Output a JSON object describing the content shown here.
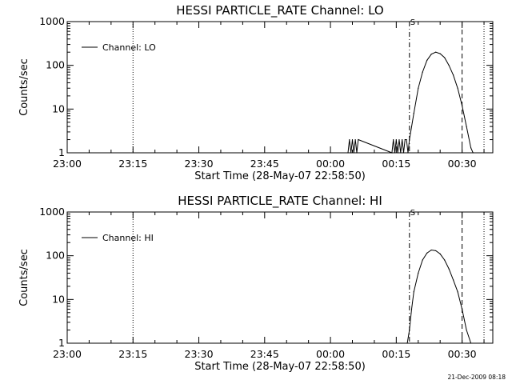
{
  "chart_data": [
    {
      "type": "line",
      "title": "HESSI PARTICLE_RATE Channel: LO",
      "xlabel": "Start Time (28-May-07 22:58:50)",
      "ylabel": "Counts/sec",
      "y_scale": "log",
      "ylim": [
        1,
        1000
      ],
      "xlim": [
        "23:00",
        "00:37"
      ],
      "x_ticks": [
        "23:00",
        "23:15",
        "23:30",
        "23:45",
        "00:00",
        "00:15",
        "00:30"
      ],
      "y_ticks": [
        "1",
        "10",
        "100",
        "1000"
      ],
      "legend": {
        "placement": "top-left",
        "entries": [
          "Channel: LO"
        ]
      },
      "marker_text": "S",
      "vertical_lines": [
        {
          "time": "23:15",
          "style": "dotted"
        },
        {
          "time": "00:18",
          "style": "dash-dot"
        },
        {
          "time": "00:30",
          "style": "dashed"
        },
        {
          "time": "00:35",
          "style": "dotted"
        }
      ],
      "series": [
        {
          "name": "Channel: LO",
          "x": [
            "00:04",
            "00:04:20",
            "00:04:40",
            "00:05",
            "00:05:20",
            "00:05:40",
            "00:06",
            "00:06:20",
            "00:14",
            "00:14:20",
            "00:14:40",
            "00:15",
            "00:15:20",
            "00:15:40",
            "00:16",
            "00:16:20",
            "00:16:40",
            "00:17",
            "00:17:20",
            "00:17:40",
            "00:18",
            "00:19",
            "00:20",
            "00:21",
            "00:22",
            "00:23",
            "00:24",
            "00:25",
            "00:26",
            "00:27",
            "00:28",
            "00:29",
            "00:30",
            "00:31",
            "00:32",
            "00:32:30"
          ],
          "values": [
            1,
            2,
            1,
            2,
            1,
            2,
            1,
            2,
            1,
            2,
            1,
            2,
            1,
            2,
            1,
            2,
            1,
            2,
            2,
            1,
            2,
            8,
            30,
            70,
            130,
            180,
            200,
            185,
            150,
            100,
            60,
            30,
            12,
            4,
            1.3,
            1
          ]
        }
      ]
    },
    {
      "type": "line",
      "title": "HESSI PARTICLE_RATE Channel: HI",
      "xlabel": "Start Time (28-May-07 22:58:50)",
      "ylabel": "Counts/sec",
      "y_scale": "log",
      "ylim": [
        1,
        1000
      ],
      "xlim": [
        "23:00",
        "00:37"
      ],
      "x_ticks": [
        "23:00",
        "23:15",
        "23:30",
        "23:45",
        "00:00",
        "00:15",
        "00:30"
      ],
      "y_ticks": [
        "1",
        "10",
        "100",
        "1000"
      ],
      "legend": {
        "placement": "top-left",
        "entries": [
          "Channel: HI"
        ]
      },
      "marker_text": "S",
      "vertical_lines": [
        {
          "time": "23:15",
          "style": "dotted"
        },
        {
          "time": "00:18",
          "style": "dash-dot"
        },
        {
          "time": "00:30",
          "style": "dashed"
        },
        {
          "time": "00:35",
          "style": "dotted"
        }
      ],
      "series": [
        {
          "name": "Channel: HI",
          "x": [
            "00:17:30",
            "00:18",
            "00:18:30",
            "00:19",
            "00:20",
            "00:21",
            "00:22",
            "00:23",
            "00:24",
            "00:25",
            "00:26",
            "00:27",
            "00:28",
            "00:29",
            "00:30",
            "00:31",
            "00:32"
          ],
          "values": [
            1,
            2,
            6,
            15,
            40,
            80,
            115,
            135,
            130,
            110,
            80,
            50,
            28,
            15,
            6,
            2,
            1
          ]
        }
      ]
    }
  ],
  "footer_stamp": "21-Dec-2009 08:18"
}
